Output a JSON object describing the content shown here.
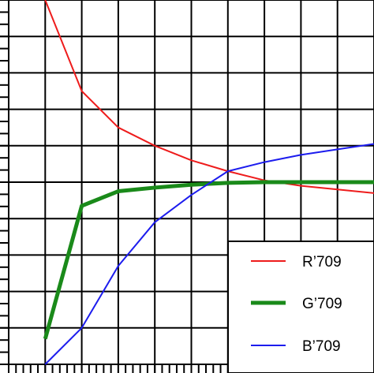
{
  "chart_data": {
    "type": "line",
    "x": [
      0,
      1,
      2,
      3,
      4,
      5,
      6,
      7,
      8,
      9
    ],
    "series": [
      {
        "name": "R’709",
        "color": "#ee1c1c",
        "values": [
          10,
          7.5,
          6.5,
          6.0,
          5.6,
          5.3,
          5.05,
          4.9,
          4.8,
          4.7
        ]
      },
      {
        "name": "G’709",
        "color": "#1a8a1a",
        "values": [
          0.7,
          4.35,
          4.75,
          4.85,
          4.93,
          4.98,
          5.0,
          5.0,
          5.0,
          5.0
        ]
      },
      {
        "name": "B’709",
        "color": "#1c1cee",
        "values": [
          0.0,
          1.0,
          2.7,
          3.9,
          4.65,
          5.3,
          5.55,
          5.75,
          5.9,
          6.05
        ]
      }
    ],
    "xlim": [
      -1,
      9
    ],
    "ylim": [
      0,
      10
    ],
    "grid": true,
    "legend": "bottom-right"
  }
}
